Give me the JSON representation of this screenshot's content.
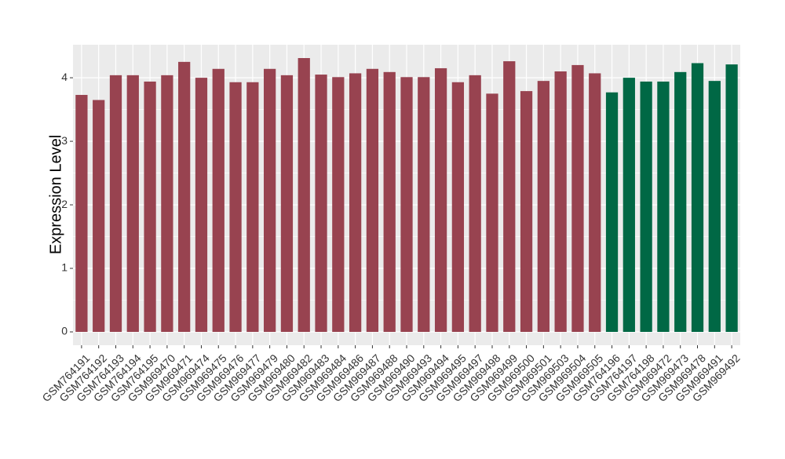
{
  "chart_data": {
    "type": "bar",
    "ylabel": "Expression Level",
    "categories": [
      "GSM764191",
      "GSM764192",
      "GSM764193",
      "GSM764194",
      "GSM764195",
      "GSM969470",
      "GSM969471",
      "GSM969474",
      "GSM969475",
      "GSM969476",
      "GSM969477",
      "GSM969479",
      "GSM969480",
      "GSM969482",
      "GSM969483",
      "GSM969484",
      "GSM969486",
      "GSM969487",
      "GSM969488",
      "GSM969490",
      "GSM969493",
      "GSM969494",
      "GSM969495",
      "GSM969497",
      "GSM969498",
      "GSM969499",
      "GSM969500",
      "GSM969501",
      "GSM969503",
      "GSM969504",
      "GSM969505",
      "GSM764196",
      "GSM764197",
      "GSM764198",
      "GSM969472",
      "GSM969473",
      "GSM969478",
      "GSM969491",
      "GSM969492"
    ],
    "values": [
      3.73,
      3.65,
      4.04,
      4.04,
      3.94,
      4.04,
      4.25,
      4.0,
      4.14,
      3.93,
      3.93,
      4.14,
      4.04,
      4.31,
      4.05,
      4.01,
      4.07,
      4.14,
      4.09,
      4.01,
      4.01,
      4.15,
      3.93,
      4.04,
      3.75,
      4.26,
      3.79,
      3.95,
      4.1,
      4.2,
      4.07,
      3.77,
      4.0,
      3.94,
      3.94,
      4.09,
      4.23,
      3.95,
      4.21
    ],
    "colors": [
      "#984350",
      "#984350",
      "#984350",
      "#984350",
      "#984350",
      "#984350",
      "#984350",
      "#984350",
      "#984350",
      "#984350",
      "#984350",
      "#984350",
      "#984350",
      "#984350",
      "#984350",
      "#984350",
      "#984350",
      "#984350",
      "#984350",
      "#984350",
      "#984350",
      "#984350",
      "#984350",
      "#984350",
      "#984350",
      "#984350",
      "#984350",
      "#984350",
      "#984350",
      "#984350",
      "#984350",
      "#006845",
      "#006845",
      "#006845",
      "#006845",
      "#006845",
      "#006845",
      "#006845",
      "#006845"
    ],
    "ylim": [
      -0.21,
      4.52
    ],
    "yticks": [
      0,
      1,
      2,
      3,
      4
    ],
    "grid": true
  }
}
